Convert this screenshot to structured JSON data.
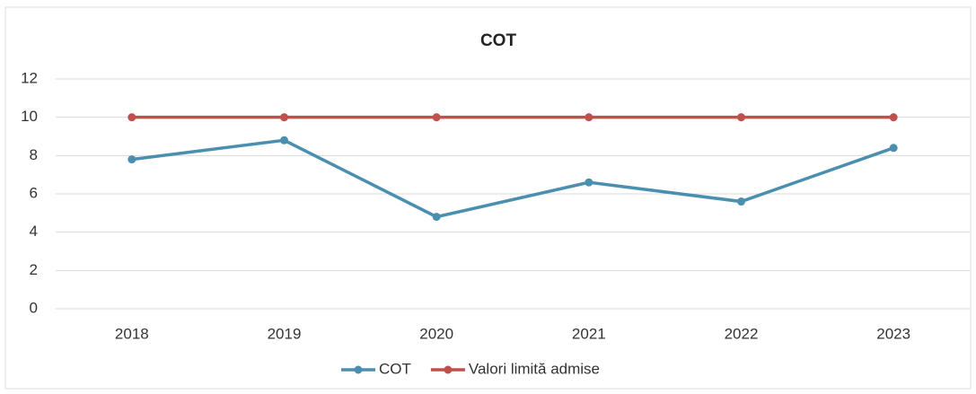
{
  "chart_data": {
    "type": "line",
    "title": "COT",
    "categories": [
      "2018",
      "2019",
      "2020",
      "2021",
      "2022",
      "2023"
    ],
    "series": [
      {
        "name": "COT",
        "color": "#4a8fb0",
        "values": [
          7.8,
          8.8,
          4.8,
          6.6,
          5.6,
          8.4
        ]
      },
      {
        "name": "Valori limită admise",
        "color": "#c0504d",
        "values": [
          10,
          10,
          10,
          10,
          10,
          10
        ]
      }
    ],
    "ylim": [
      0,
      12
    ],
    "yticks": [
      0,
      2,
      4,
      6,
      8,
      10,
      12
    ],
    "grid": true,
    "legend": "bottom"
  }
}
